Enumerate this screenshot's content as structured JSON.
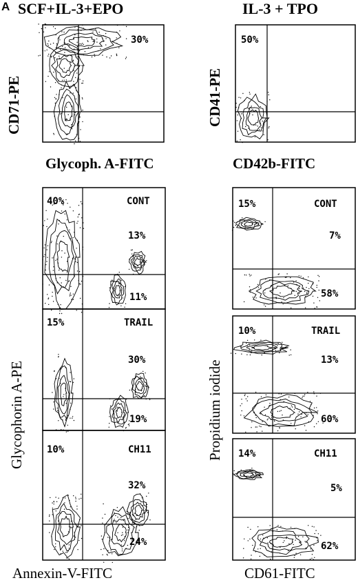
{
  "figure": {
    "panel_letter": "A",
    "left_title": "SCF+IL-3+EPO",
    "right_title": "IL-3 + TPO"
  },
  "top_row": {
    "left": {
      "ylabel": "CD71-PE",
      "xlabel": "Glycoph. A-FITC",
      "quadrant_label": "30%"
    },
    "right": {
      "ylabel": "CD41-PE",
      "xlabel": "CD42b-FITC",
      "quadrant_label": "50%"
    }
  },
  "bottom_left": {
    "ylabel": "Glycophorin A-PE",
    "xlabel": "Annexin-V-FITC",
    "panels": [
      {
        "condition": "CONT",
        "upper_left": "40%",
        "upper_right": "13%",
        "lower_right": "11%"
      },
      {
        "condition": "TRAIL",
        "upper_left": "15%",
        "upper_right": "30%",
        "lower_right": "19%"
      },
      {
        "condition": "CH11",
        "upper_left": "10%",
        "upper_right": "32%",
        "lower_right": "24%"
      }
    ]
  },
  "bottom_right": {
    "ylabel": "Propidium iodide",
    "xlabel": "CD61-FITC",
    "panels": [
      {
        "condition": "CONT",
        "upper_left": "15%",
        "upper_right": "7%",
        "lower_right": "58%"
      },
      {
        "condition": "TRAIL",
        "upper_left": "10%",
        "upper_right": "13%",
        "lower_right": "60%"
      },
      {
        "condition": "CH11",
        "upper_left": "14%",
        "upper_right": "5%",
        "lower_right": "62%"
      }
    ]
  },
  "chart_data": [
    {
      "type": "scatter",
      "title": "SCF+IL-3+EPO",
      "xlabel": "Glycoph. A-FITC",
      "ylabel": "CD71-PE",
      "quadrants": {
        "upper_right": 30
      }
    },
    {
      "type": "scatter",
      "title": "IL-3 + TPO",
      "xlabel": "CD42b-FITC",
      "ylabel": "CD41-PE",
      "quadrants": {
        "upper_left": 50
      }
    },
    {
      "type": "scatter",
      "xlabel": "Annexin-V-FITC",
      "ylabel": "Glycophorin A-PE",
      "condition": "CONT",
      "quadrants": {
        "upper_left": 40,
        "upper_right": 13,
        "lower_right": 11
      }
    },
    {
      "type": "scatter",
      "xlabel": "Annexin-V-FITC",
      "ylabel": "Glycophorin A-PE",
      "condition": "TRAIL",
      "quadrants": {
        "upper_left": 15,
        "upper_right": 30,
        "lower_right": 19
      }
    },
    {
      "type": "scatter",
      "xlabel": "Annexin-V-FITC",
      "ylabel": "Glycophorin A-PE",
      "condition": "CH11",
      "quadrants": {
        "upper_left": 10,
        "upper_right": 32,
        "lower_right": 24
      }
    },
    {
      "type": "scatter",
      "xlabel": "CD61-FITC",
      "ylabel": "Propidium iodide",
      "condition": "CONT",
      "quadrants": {
        "upper_left": 15,
        "upper_right": 7,
        "lower_right": 58
      }
    },
    {
      "type": "scatter",
      "xlabel": "CD61-FITC",
      "ylabel": "Propidium iodide",
      "condition": "TRAIL",
      "quadrants": {
        "upper_left": 10,
        "upper_right": 13,
        "lower_right": 60
      }
    },
    {
      "type": "scatter",
      "xlabel": "CD61-FITC",
      "ylabel": "Propidium iodide",
      "condition": "CH11",
      "quadrants": {
        "upper_left": 14,
        "upper_right": 5,
        "lower_right": 62
      }
    }
  ]
}
